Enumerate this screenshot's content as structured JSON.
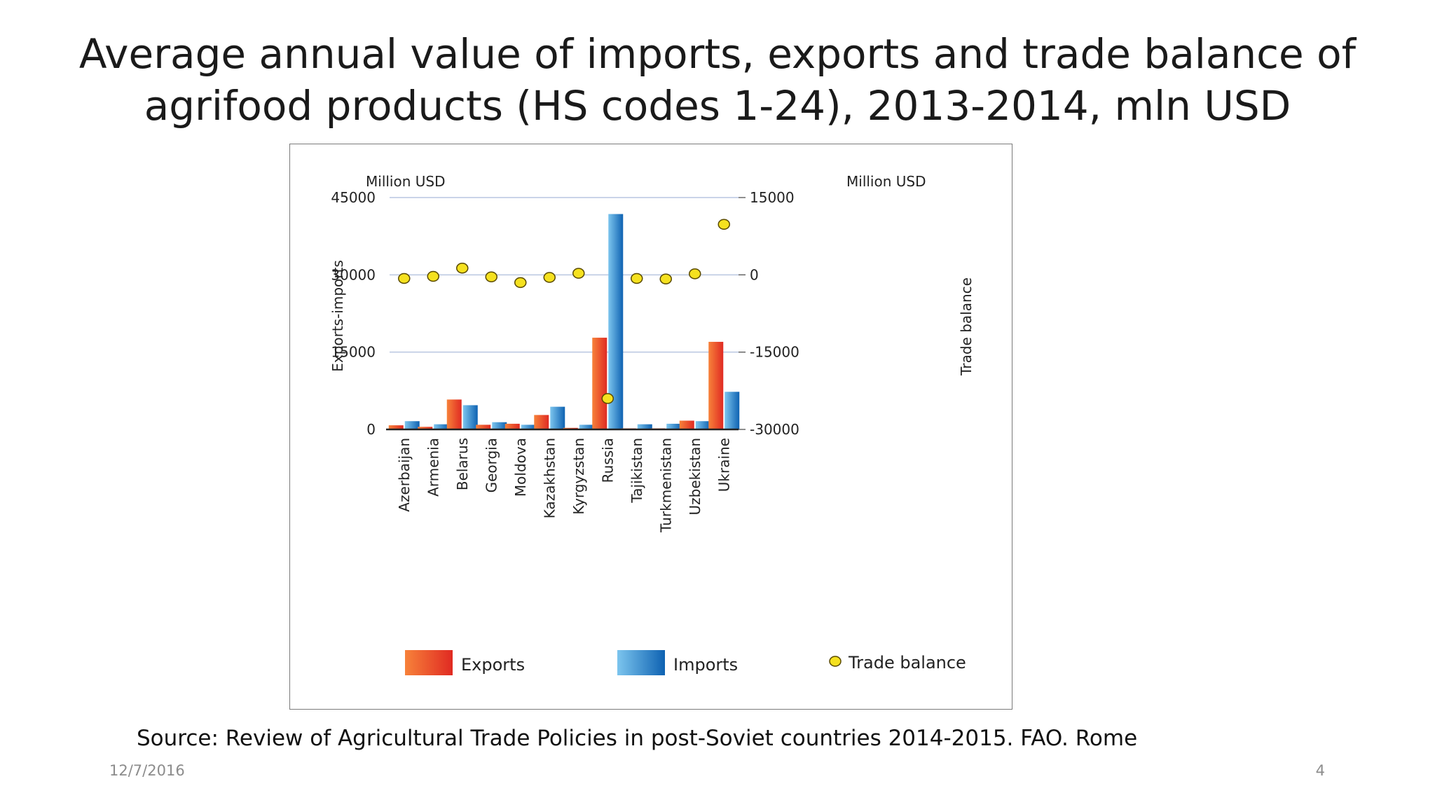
{
  "slide": {
    "title_line1": "Average annual value of imports, exports and trade balance of",
    "title_line2": "agrifood products (HS codes 1-24), 2013-2014, mln USD",
    "source": "Source: Review of Agricultural Trade Policies in post-Soviet countries 2014-2015. FAO. Rome",
    "date": "12/7/2016",
    "page_number": "4"
  },
  "chart_data": {
    "type": "bar",
    "categories": [
      "Azerbaijan",
      "Armenia",
      "Belarus",
      "Georgia",
      "Moldova",
      "Kazakhstan",
      "Kyrgyzstan",
      "Russia",
      "Tajikistan",
      "Turkmenistan",
      "Uzbekistan",
      "Ukraine"
    ],
    "series": [
      {
        "name": "Exports",
        "axis": "left",
        "color": "#e8452a",
        "values": [
          800,
          500,
          5800,
          900,
          1100,
          2800,
          300,
          17800,
          200,
          200,
          1700,
          17000
        ]
      },
      {
        "name": "Imports",
        "axis": "left",
        "color": "#1e7fce",
        "values": [
          1600,
          1000,
          4700,
          1400,
          900,
          4400,
          900,
          41800,
          1000,
          1100,
          1600,
          7300
        ]
      },
      {
        "name": "Trade balance",
        "axis": "right",
        "type": "scatter",
        "color": "#f5e11f",
        "values": [
          -700,
          -300,
          1300,
          -400,
          -1500,
          -500,
          300,
          -24000,
          -700,
          -800,
          200,
          9800
        ]
      }
    ],
    "left_axis": {
      "label": "Exports-imports",
      "unit_label": "Million USD",
      "range": [
        0,
        45000
      ],
      "ticks": [
        0,
        15000,
        30000,
        45000
      ],
      "tick_labels": [
        "0",
        "15000",
        "30000",
        "45000"
      ]
    },
    "right_axis": {
      "label": "Trade balance",
      "unit_label": "Million USD",
      "range": [
        -30000,
        15000
      ],
      "ticks": [
        -30000,
        -15000,
        0,
        15000
      ],
      "tick_labels": [
        "-30000",
        "-15000",
        "0",
        "15000"
      ]
    },
    "legend": {
      "position": "bottom",
      "items": [
        "Exports",
        "Imports",
        "Trade balance"
      ]
    },
    "grid": true
  }
}
